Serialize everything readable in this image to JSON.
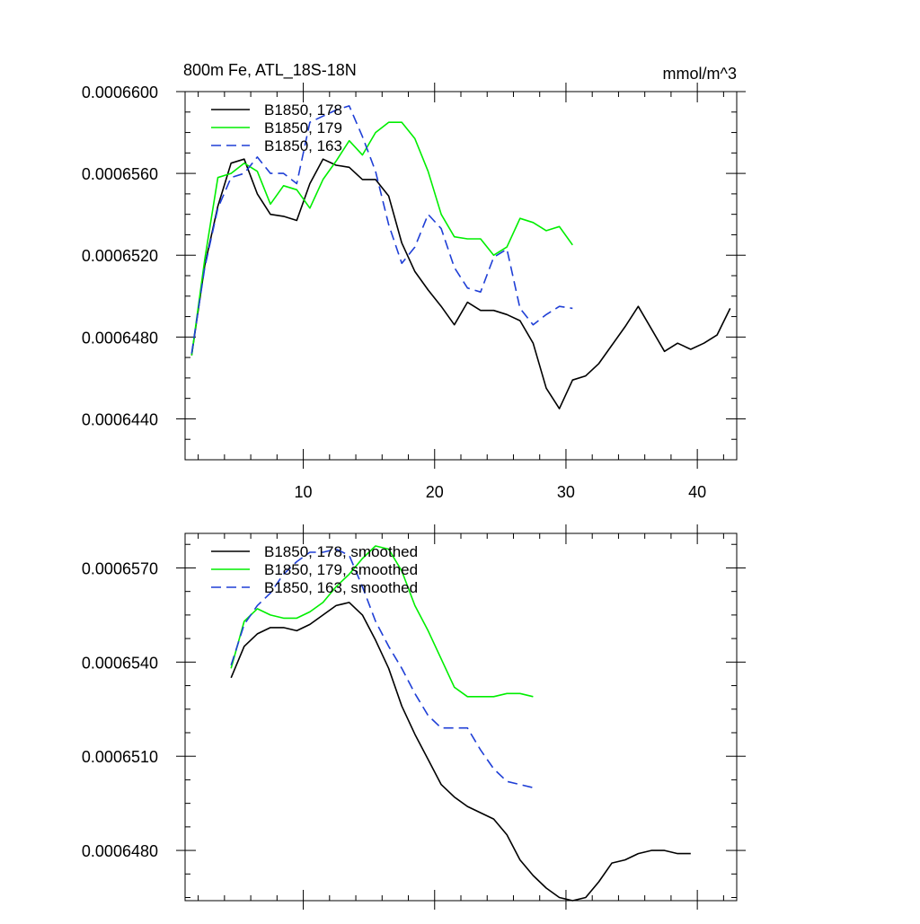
{
  "chart_data": [
    {
      "type": "line",
      "title": "800m Fe, ATL_18S-18N",
      "units": "mmol/m^3",
      "xlabel": "",
      "ylabel": "",
      "xlim": [
        1,
        43
      ],
      "ylim": [
        0.000642,
        0.00066
      ],
      "xticks": [
        10,
        20,
        30,
        40
      ],
      "xtick_labels": [
        "10",
        "20",
        "30",
        "40"
      ],
      "yticks": [
        0.000644,
        0.000648,
        0.000652,
        0.000656,
        0.00066
      ],
      "ytick_labels": [
        "0.0006440",
        "0.0006480",
        "0.0006520",
        "0.0006560",
        "0.0006600"
      ],
      "legend_position": "top-left",
      "series": [
        {
          "name": "B1850, 178",
          "color": "#000000",
          "dash": "solid",
          "x": [
            1.5,
            2.5,
            3.5,
            4.5,
            5.5,
            6.5,
            7.5,
            8.5,
            9.5,
            10.5,
            11.5,
            12.5,
            13.5,
            14.5,
            15.5,
            16.5,
            17.5,
            18.5,
            19.5,
            20.5,
            21.5,
            22.5,
            23.5,
            24.5,
            25.5,
            26.5,
            27.5,
            28.5,
            29.5,
            30.5,
            31.5,
            32.5,
            33.5,
            34.5,
            35.5,
            36.5,
            37.5,
            38.5,
            39.5,
            40.5,
            41.5,
            42.5
          ],
          "values": [
            0.0006471,
            0.0006515,
            0.0006544,
            0.0006565,
            0.0006567,
            0.000655,
            0.000654,
            0.0006539,
            0.0006537,
            0.0006555,
            0.0006567,
            0.0006564,
            0.0006563,
            0.0006557,
            0.0006557,
            0.0006549,
            0.0006526,
            0.0006512,
            0.0006503,
            0.0006495,
            0.0006486,
            0.0006497,
            0.0006493,
            0.0006493,
            0.0006491,
            0.0006488,
            0.0006477,
            0.0006455,
            0.0006445,
            0.0006459,
            0.0006461,
            0.0006467,
            0.0006476,
            0.0006485,
            0.0006495,
            0.0006484,
            0.0006473,
            0.0006477,
            0.0006474,
            0.0006477,
            0.0006481,
            0.0006494
          ]
        },
        {
          "name": "B1850, 179",
          "color": "#00ee00",
          "dash": "solid",
          "x": [
            1.5,
            2.5,
            3.5,
            4.5,
            5.5,
            6.5,
            7.5,
            8.5,
            9.5,
            10.5,
            11.5,
            12.5,
            13.5,
            14.5,
            15.5,
            16.5,
            17.5,
            18.5,
            19.5,
            20.5,
            21.5,
            22.5,
            23.5,
            24.5,
            25.5,
            26.5,
            27.5,
            28.5,
            29.5,
            30.5
          ],
          "values": [
            0.0006471,
            0.0006518,
            0.0006558,
            0.000656,
            0.0006565,
            0.0006561,
            0.0006545,
            0.0006554,
            0.0006552,
            0.0006543,
            0.0006557,
            0.0006566,
            0.0006576,
            0.0006569,
            0.000658,
            0.0006585,
            0.0006585,
            0.0006577,
            0.0006561,
            0.000654,
            0.0006529,
            0.0006528,
            0.0006528,
            0.000652,
            0.0006524,
            0.0006538,
            0.0006536,
            0.0006532,
            0.0006534,
            0.0006525
          ]
        },
        {
          "name": "B1850, 163",
          "color": "#1f3fd6",
          "dash": "dashed",
          "x": [
            1.5,
            2.5,
            3.5,
            4.5,
            5.5,
            6.5,
            7.5,
            8.5,
            9.5,
            10.5,
            11.5,
            12.5,
            13.5,
            14.5,
            15.5,
            16.5,
            17.5,
            18.5,
            19.5,
            20.5,
            21.5,
            22.5,
            23.5,
            24.5,
            25.5,
            26.5,
            27.5,
            28.5,
            29.5,
            30.5
          ],
          "values": [
            0.0006472,
            0.0006514,
            0.0006543,
            0.0006558,
            0.000656,
            0.0006568,
            0.000656,
            0.000656,
            0.0006555,
            0.0006585,
            0.0006588,
            0.0006591,
            0.0006593,
            0.0006578,
            0.0006561,
            0.0006535,
            0.0006516,
            0.0006524,
            0.000654,
            0.0006533,
            0.0006514,
            0.0006504,
            0.0006502,
            0.0006519,
            0.0006523,
            0.0006494,
            0.0006486,
            0.0006491,
            0.0006495,
            0.0006494
          ]
        }
      ]
    },
    {
      "type": "line",
      "title": "",
      "xlabel": "",
      "ylabel": "",
      "xlim": [
        1,
        43
      ],
      "ylim": [
        0.0006464,
        0.0006581
      ],
      "xticks": [
        10,
        20,
        30,
        40
      ],
      "xtick_labels": [],
      "yticks": [
        0.000648,
        0.000651,
        0.000654,
        0.000657
      ],
      "ytick_labels": [
        "0.0006480",
        "0.0006510",
        "0.0006540",
        "0.0006570"
      ],
      "legend_position": "top-left",
      "series": [
        {
          "name": "B1850, 178, smoothed",
          "color": "#000000",
          "dash": "solid",
          "x": [
            4.5,
            5.5,
            6.5,
            7.5,
            8.5,
            9.5,
            10.5,
            11.5,
            12.5,
            13.5,
            14.5,
            15.5,
            16.5,
            17.5,
            18.5,
            19.5,
            20.5,
            21.5,
            22.5,
            23.5,
            24.5,
            25.5,
            26.5,
            27.5,
            28.5,
            29.5,
            30.5,
            31.5,
            32.5,
            33.5,
            34.5,
            35.5,
            36.5,
            37.5,
            38.5,
            39.5
          ],
          "values": [
            0.0006535,
            0.0006545,
            0.0006549,
            0.0006551,
            0.0006551,
            0.000655,
            0.0006552,
            0.0006555,
            0.0006558,
            0.0006559,
            0.0006555,
            0.0006547,
            0.0006538,
            0.0006526,
            0.0006517,
            0.0006509,
            0.0006501,
            0.0006497,
            0.0006494,
            0.0006492,
            0.000649,
            0.0006485,
            0.0006477,
            0.0006472,
            0.0006468,
            0.0006465,
            0.0006464,
            0.0006465,
            0.000647,
            0.0006476,
            0.0006477,
            0.0006479,
            0.000648,
            0.000648,
            0.0006479,
            0.0006479
          ]
        },
        {
          "name": "B1850, 179, smoothed",
          "color": "#00ee00",
          "dash": "solid",
          "x": [
            4.5,
            5.5,
            6.5,
            7.5,
            8.5,
            9.5,
            10.5,
            11.5,
            12.5,
            13.5,
            14.5,
            15.5,
            16.5,
            17.5,
            18.5,
            19.5,
            20.5,
            21.5,
            22.5,
            23.5,
            24.5,
            25.5,
            26.5,
            27.5
          ],
          "values": [
            0.0006538,
            0.0006553,
            0.0006557,
            0.0006555,
            0.0006554,
            0.0006554,
            0.0006556,
            0.0006559,
            0.0006564,
            0.0006568,
            0.0006573,
            0.0006577,
            0.0006576,
            0.0006569,
            0.0006558,
            0.000655,
            0.0006541,
            0.0006532,
            0.0006529,
            0.0006529,
            0.0006529,
            0.000653,
            0.000653,
            0.0006529
          ]
        },
        {
          "name": "B1850, 163, smoothed",
          "color": "#1f3fd6",
          "dash": "dashed",
          "x": [
            4.5,
            5.5,
            6.5,
            7.5,
            8.5,
            9.5,
            10.5,
            11.5,
            12.5,
            13.5,
            14.5,
            15.5,
            16.5,
            17.5,
            18.5,
            19.5,
            20.5,
            21.5,
            22.5,
            23.5,
            24.5,
            25.5,
            26.5,
            27.5
          ],
          "values": [
            0.0006539,
            0.0006552,
            0.0006558,
            0.0006562,
            0.0006568,
            0.0006572,
            0.0006575,
            0.0006575,
            0.0006576,
            0.0006574,
            0.0006564,
            0.0006553,
            0.0006545,
            0.0006538,
            0.000653,
            0.0006523,
            0.0006519,
            0.0006519,
            0.0006519,
            0.0006512,
            0.0006506,
            0.0006502,
            0.0006501,
            0.00065
          ]
        }
      ]
    }
  ]
}
